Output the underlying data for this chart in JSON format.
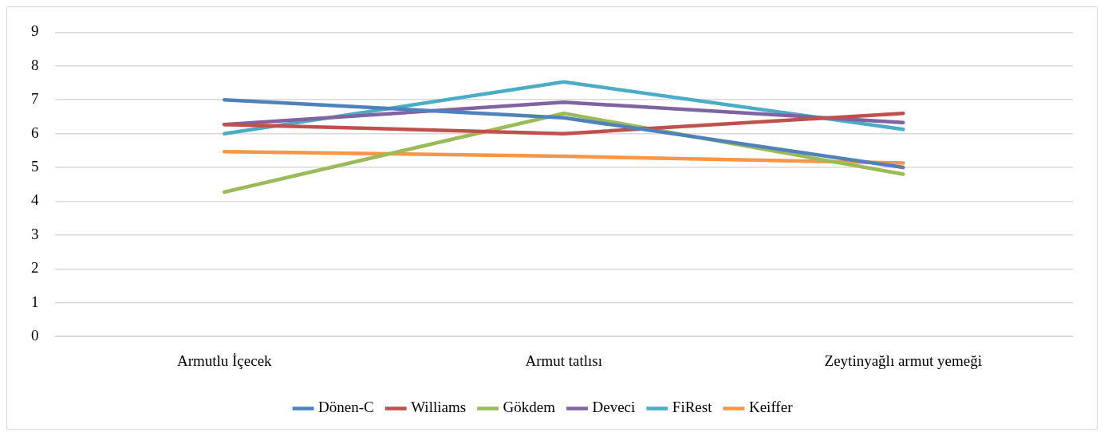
{
  "chart_data": {
    "type": "line",
    "categories": [
      "Armutlu İçecek",
      "Armut tatlısı",
      "Zeytinyağlı armut yemeği"
    ],
    "series": [
      {
        "name": "Dönen-C",
        "color": "#4f81bd",
        "values": [
          7.0,
          6.47,
          5.0
        ]
      },
      {
        "name": "Williams",
        "color": "#c0504d",
        "values": [
          6.27,
          6.0,
          6.6
        ]
      },
      {
        "name": "Gökdem",
        "color": "#9bbb59",
        "values": [
          4.27,
          6.6,
          4.8
        ]
      },
      {
        "name": "Deveci",
        "color": "#8064a2",
        "values": [
          6.27,
          6.93,
          6.33
        ]
      },
      {
        "name": "FiRest",
        "color": "#4bacc6",
        "values": [
          6.0,
          7.53,
          6.13
        ]
      },
      {
        "name": "Keiffer",
        "color": "#f79646",
        "values": [
          5.47,
          5.33,
          5.13
        ]
      }
    ],
    "ylim": [
      0,
      9
    ],
    "yticks": [
      0,
      1,
      2,
      3,
      4,
      5,
      6,
      7,
      8,
      9
    ],
    "grid": "y",
    "legend": "bottom",
    "marker": "none",
    "line_style": "solid"
  }
}
